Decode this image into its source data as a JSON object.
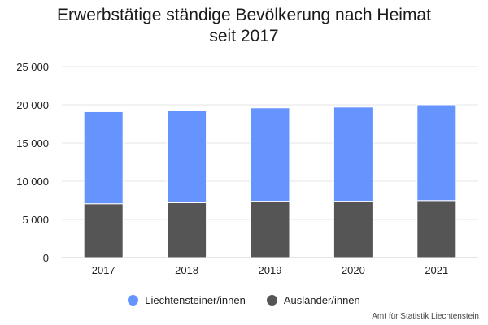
{
  "chart_data": {
    "type": "bar",
    "stacked": true,
    "title_lines": [
      "Erwerbstätige ständige Bevölkerung nach Heimat",
      "seit 2017"
    ],
    "categories": [
      "2017",
      "2018",
      "2019",
      "2020",
      "2021"
    ],
    "series": [
      {
        "name": "Ausländer/innen",
        "color": "#555555",
        "values": [
          7050,
          7180,
          7380,
          7380,
          7470
        ]
      },
      {
        "name": "Liechtensteiner/innen",
        "color": "#6694ff",
        "values": [
          12050,
          12120,
          12220,
          12320,
          12530
        ]
      }
    ],
    "ylim": [
      0,
      25000
    ],
    "yticks": [
      0,
      5000,
      10000,
      15000,
      20000,
      25000
    ],
    "ytick_labels": [
      "0",
      "5 000",
      "10 000",
      "15 000",
      "20 000",
      "25 000"
    ],
    "grid": true,
    "legend_position": "bottom-center",
    "legend_order": [
      "Liechtensteiner/innen",
      "Ausländer/innen"
    ],
    "source": "Amt für Statistik Liechtenstein"
  }
}
